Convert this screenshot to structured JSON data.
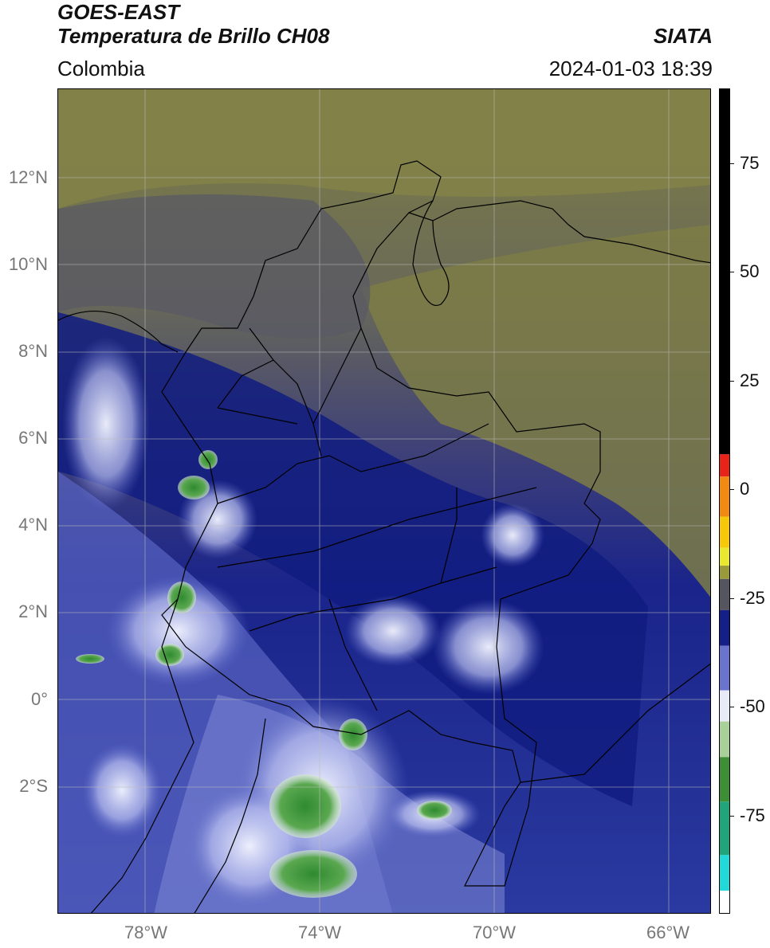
{
  "header": {
    "title_line1": "GOES-EAST",
    "title_line2": "Temperatura de Brillo CH08",
    "region": "Colombia",
    "organization": "SIATA",
    "datetime": "2024-01-03 18:39"
  },
  "map": {
    "latitude_labels": [
      "12°N",
      "10°N",
      "8°N",
      "6°N",
      "4°N",
      "2°N",
      "0°",
      "2°S"
    ],
    "longitude_labels": [
      "78°W",
      "74°W",
      "70°W",
      "66°W"
    ],
    "extent": {
      "lon_min": -80,
      "lon_max": -65,
      "lat_min": -5.2,
      "lat_max": 14
    },
    "colors": {
      "warm_olive": "#8a8a3a",
      "mid_gray": "#5e5e62",
      "dark_navy": "#111c80",
      "mid_blue": "#2a3aa0",
      "light_blue": "#8f97d8",
      "white": "#f2f4ff",
      "cold_green": "#3f8f3a",
      "borders": "#000000"
    }
  },
  "colorbar": {
    "tick_labels": [
      "75",
      "50",
      "25",
      "0",
      "-25",
      "-50",
      "-75"
    ],
    "range": [
      -95,
      90
    ],
    "segments": [
      {
        "from": 90,
        "to": 8,
        "color": "#000000"
      },
      {
        "from": 8,
        "to": 3,
        "color": "#e8241a"
      },
      {
        "from": 3,
        "to": -6,
        "color": "#f08a12"
      },
      {
        "from": -6,
        "to": -13,
        "color": "#f5c90a"
      },
      {
        "from": -13,
        "to": -17,
        "color": "#e8e830"
      },
      {
        "from": -17,
        "to": -20,
        "color": "#9a9a3a"
      },
      {
        "from": -20,
        "to": -27,
        "color": "#555560"
      },
      {
        "from": -27,
        "to": -35,
        "color": "#141f88"
      },
      {
        "from": -35,
        "to": -45,
        "color": "#6a74cc"
      },
      {
        "from": -45,
        "to": -52,
        "color": "#e8eaf8"
      },
      {
        "from": -52,
        "to": -60,
        "color": "#a8d098"
      },
      {
        "from": -60,
        "to": -70,
        "color": "#3e8e36"
      },
      {
        "from": -70,
        "to": -82,
        "color": "#22a47a"
      },
      {
        "from": -82,
        "to": -90,
        "color": "#22d8d8"
      },
      {
        "from": -90,
        "to": -95,
        "color": "#ffffff"
      }
    ]
  }
}
